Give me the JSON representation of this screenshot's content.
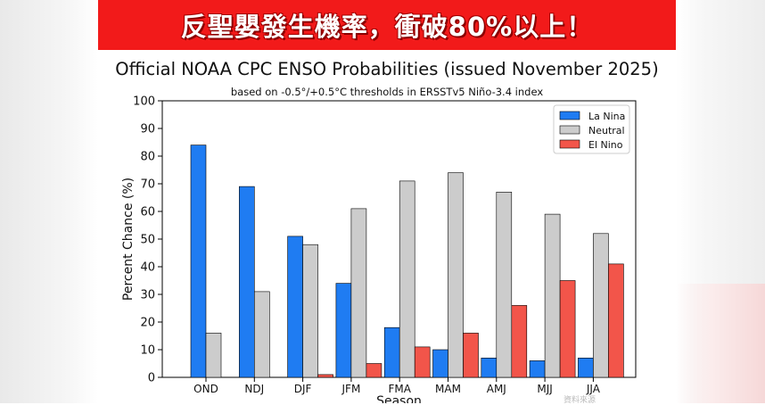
{
  "banner": {
    "headline": "反聖嬰發生機率，衝破80%以上！"
  },
  "chart_data": {
    "type": "bar",
    "title": "Official NOAA CPC ENSO Probabilities (issued November 2025)",
    "subtitle": "based on -0.5°/+0.5°C thresholds in ERSSTv5 Niño-3.4 index",
    "xlabel": "Season",
    "ylabel": "Percent Chance (%)",
    "ylim": [
      0,
      100
    ],
    "yticks": [
      0,
      10,
      20,
      30,
      40,
      50,
      60,
      70,
      80,
      90,
      100
    ],
    "categories": [
      "OND",
      "NDJ",
      "DJF",
      "JFM",
      "FMA",
      "MAM",
      "AMJ",
      "MJJ",
      "JJA"
    ],
    "series": [
      {
        "name": "La Nina",
        "color": "#1f7cf2",
        "values": [
          84,
          69,
          51,
          34,
          18,
          10,
          7,
          6,
          7
        ]
      },
      {
        "name": "Neutral",
        "color": "#cccccc",
        "values": [
          16,
          31,
          48,
          61,
          71,
          74,
          67,
          59,
          52
        ]
      },
      {
        "name": "El Nino",
        "color": "#f2554a",
        "values": [
          0,
          0,
          1,
          5,
          11,
          16,
          26,
          35,
          41
        ]
      }
    ],
    "legend": "top-right",
    "grid": false
  },
  "footer": {
    "source_note": "資料來源"
  }
}
